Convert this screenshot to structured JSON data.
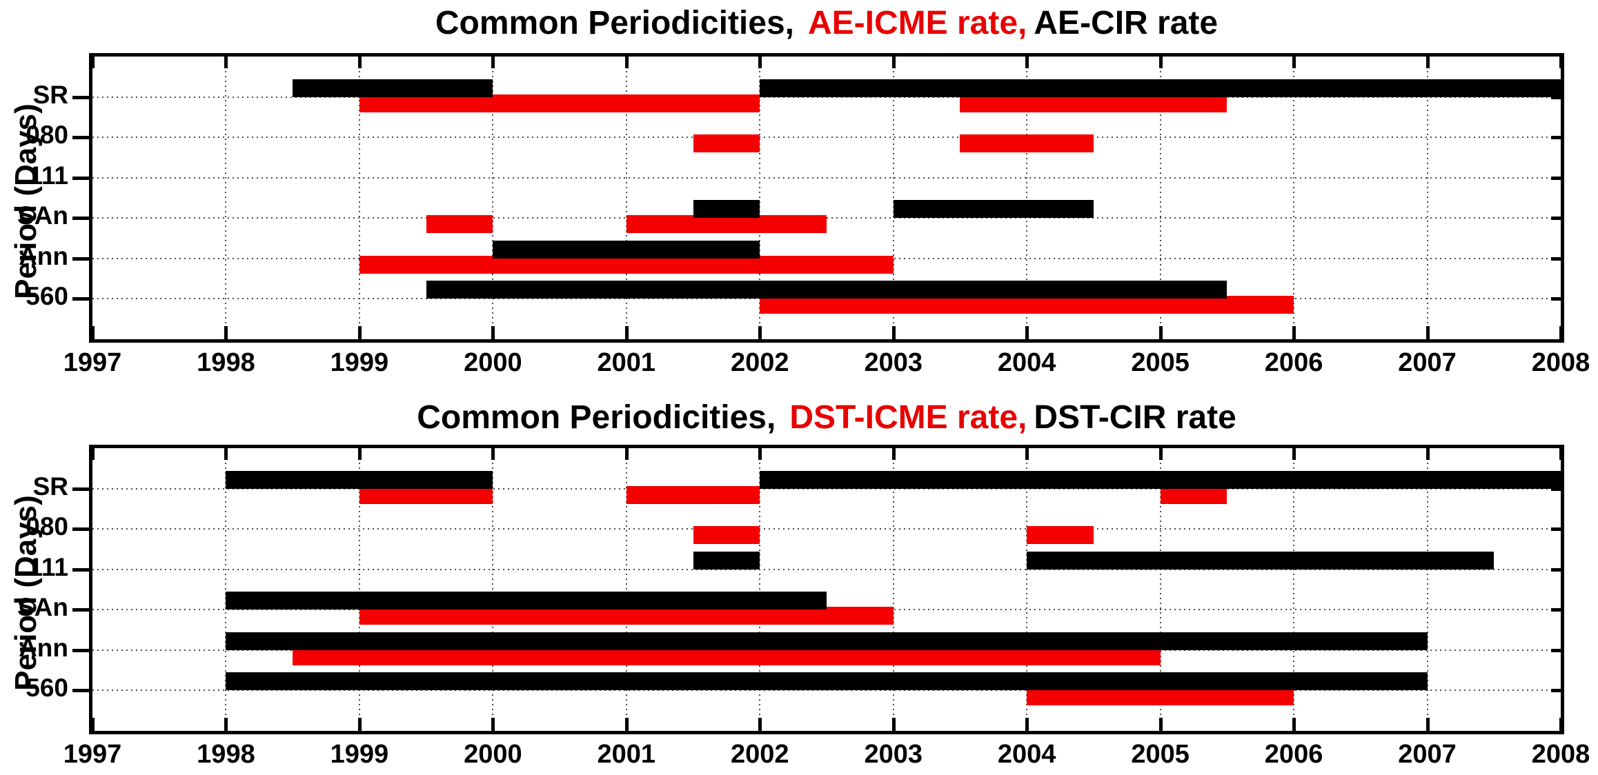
{
  "page": {
    "background": "#ffffff"
  },
  "style": {
    "bar_cir_color": "#000000",
    "bar_icme_color": "#f40000",
    "grid_color": "#4a4a4a",
    "axis_color": "#000000",
    "title_highlight_color": "#e80000"
  },
  "chart_data": [
    {
      "type": "bar",
      "subtype": "horizontal-interval-timeline",
      "title_prefix": "Common Periodicities,",
      "title_icme": "AE-ICME rate,",
      "title_cir": "AE-CIR rate",
      "ylabel": "Period (Days)",
      "xlabel": "",
      "xlim": [
        1997,
        2008
      ],
      "xticks": [
        1997,
        1998,
        1999,
        2000,
        2001,
        2002,
        2003,
        2004,
        2005,
        2006,
        2007,
        2008
      ],
      "categories": [
        "SR",
        "080",
        "111",
        "SAn",
        "Ann",
        "560"
      ],
      "grid": "dotted",
      "legend_position": "in-title",
      "series": [
        {
          "name": "AE-ICME rate",
          "role": "icme",
          "color": "#f40000"
        },
        {
          "name": "AE-CIR rate",
          "role": "cir",
          "color": "#000000"
        }
      ],
      "rows": [
        {
          "label": "SR",
          "cir": [
            [
              1998.5,
              2000
            ],
            [
              2002,
              2008
            ]
          ],
          "icme": [
            [
              1999,
              2002
            ],
            [
              2003.5,
              2005.5
            ]
          ]
        },
        {
          "label": "080",
          "cir": [],
          "icme": [
            [
              2001.5,
              2002
            ],
            [
              2003.5,
              2004.5
            ]
          ]
        },
        {
          "label": "111",
          "cir": [],
          "icme": []
        },
        {
          "label": "SAn",
          "cir": [
            [
              2001.5,
              2002
            ],
            [
              2003,
              2004.5
            ]
          ],
          "icme": [
            [
              1999.5,
              2000
            ],
            [
              2001,
              2002.5
            ]
          ]
        },
        {
          "label": "Ann",
          "cir": [
            [
              2000,
              2002
            ]
          ],
          "icme": [
            [
              1999,
              2003
            ]
          ]
        },
        {
          "label": "560",
          "cir": [
            [
              1999.5,
              2005.5
            ]
          ],
          "icme": [
            [
              2002,
              2006
            ]
          ]
        }
      ]
    },
    {
      "type": "bar",
      "subtype": "horizontal-interval-timeline",
      "title_prefix": "Common Periodicities,",
      "title_icme": "DST-ICME rate,",
      "title_cir": "DST-CIR rate",
      "ylabel": "Period (Days)",
      "xlabel": "",
      "xlim": [
        1997,
        2008
      ],
      "xticks": [
        1997,
        1998,
        1999,
        2000,
        2001,
        2002,
        2003,
        2004,
        2005,
        2006,
        2007,
        2008
      ],
      "categories": [
        "SR",
        "080",
        "111",
        "SAn",
        "Ann",
        "560"
      ],
      "grid": "dotted",
      "legend_position": "in-title",
      "series": [
        {
          "name": "DST-ICME rate",
          "role": "icme",
          "color": "#f40000"
        },
        {
          "name": "DST-CIR rate",
          "role": "cir",
          "color": "#000000"
        }
      ],
      "rows": [
        {
          "label": "SR",
          "cir": [
            [
              1998,
              2000
            ],
            [
              2002,
              2008
            ]
          ],
          "icme": [
            [
              1999,
              2000
            ],
            [
              2001,
              2002
            ],
            [
              2005,
              2005.5
            ]
          ]
        },
        {
          "label": "080",
          "cir": [],
          "icme": [
            [
              2001.5,
              2002
            ],
            [
              2004,
              2004.5
            ]
          ]
        },
        {
          "label": "111",
          "cir": [
            [
              2001.5,
              2002
            ],
            [
              2004,
              2007.5
            ]
          ],
          "icme": []
        },
        {
          "label": "SAn",
          "cir": [
            [
              1998,
              2002.5
            ]
          ],
          "icme": [
            [
              1999,
              2003
            ]
          ]
        },
        {
          "label": "Ann",
          "cir": [
            [
              1998,
              2007
            ]
          ],
          "icme": [
            [
              1998.5,
              2005
            ]
          ]
        },
        {
          "label": "560",
          "cir": [
            [
              1998,
              2007
            ]
          ],
          "icme": [
            [
              2004,
              2006
            ]
          ]
        }
      ]
    }
  ]
}
